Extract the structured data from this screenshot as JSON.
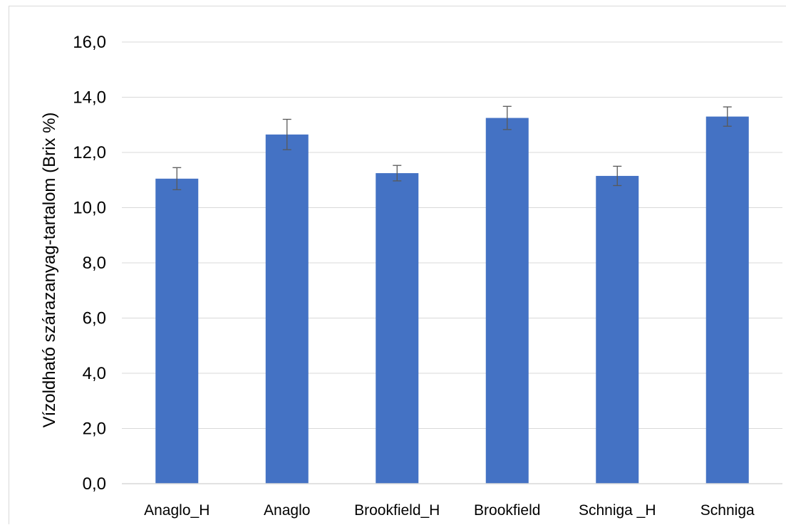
{
  "chart_data": {
    "type": "bar",
    "title": "",
    "xlabel": "",
    "ylabel": "Vízoldható szárazanyag-tartalom (Brix %)",
    "categories": [
      "Anaglo_H",
      "Anaglo",
      "Brookfield_H",
      "Brookfield",
      "Schniga _H",
      "Schniga"
    ],
    "values": [
      11.05,
      12.65,
      11.25,
      13.25,
      11.15,
      13.3
    ],
    "error": [
      0.4,
      0.55,
      0.28,
      0.42,
      0.35,
      0.35
    ],
    "ylim": [
      0,
      16
    ],
    "yticks": [
      0,
      2,
      4,
      6,
      8,
      10,
      12,
      14,
      16
    ],
    "ytick_labels": [
      "0,0",
      "2,0",
      "4,0",
      "6,0",
      "8,0",
      "10,0",
      "12,0",
      "14,0",
      "16,0"
    ],
    "grid": true,
    "legend": "none",
    "bar_color": "#4472c4",
    "grid_color": "#d9d9d9",
    "error_bar_color": "#595959"
  }
}
